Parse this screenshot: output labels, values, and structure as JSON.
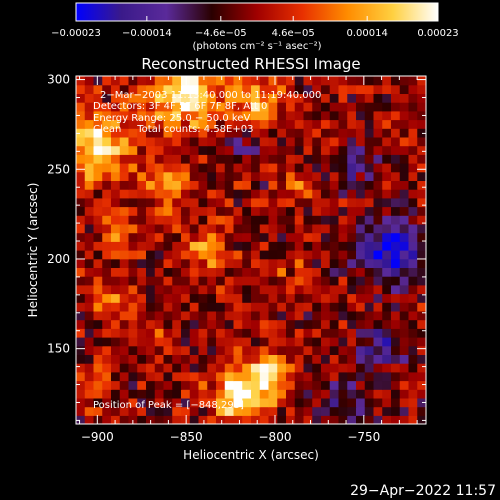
{
  "chart_data": {
    "type": "heatmap",
    "title": "Reconstructed RHESSI Image",
    "xlabel": "Heliocentric X (arcsec)",
    "ylabel": "Heliocentric Y (arcsec)",
    "xlim": [
      -912,
      -715
    ],
    "ylim": [
      108,
      302
    ],
    "x_ticks": [
      -900,
      -850,
      -800,
      -750
    ],
    "y_ticks": [
      150,
      200,
      250,
      300
    ],
    "x_tick_labels": [
      "−900",
      "−850",
      "−800",
      "−750"
    ],
    "y_tick_labels": [
      "150",
      "200",
      "250",
      "300"
    ],
    "colorbar": {
      "min": -0.00023,
      "max": 0.00023,
      "ticks": [
        -0.00023,
        -0.00014,
        -4.6e-05,
        4.6e-05,
        0.00014,
        0.00023
      ],
      "tick_labels": [
        "−0.00023",
        "−0.00014",
        "−4.6e−05",
        "4.6e−05",
        "0.00014",
        "0.00023"
      ],
      "units": "(photons cm⁻² s⁻¹ asec⁻²)",
      "colors": [
        "#0000ff",
        "#3a1a8a",
        "#5a2a9a",
        "#2a0000",
        "#a00000",
        "#e83000",
        "#ff8c00",
        "#ffd040",
        "#ffffff"
      ]
    },
    "annotations": [
      "2−Mar−2003 11:13:40.000 to 11:19:40.000",
      "Detectors: 3F 4F 5F 6F 7F 8F, Att 0",
      "Energy Range: 25.0 − 50.0 keV",
      "Clean     Total counts: 4.58E+03",
      "Position of Peak = [−848,293]"
    ],
    "grid": false,
    "grid_cells": [
      40,
      40
    ],
    "features": [
      {
        "x": -820,
        "y": 125,
        "amp": 1.0,
        "sigma": 11
      },
      {
        "x": -803,
        "y": 136,
        "amp": 0.85,
        "sigma": 8
      },
      {
        "x": -900,
        "y": 262,
        "amp": 0.9,
        "sigma": 14
      },
      {
        "x": -850,
        "y": 293,
        "amp": 1.0,
        "sigma": 14
      },
      {
        "x": -810,
        "y": 288,
        "amp": 0.7,
        "sigma": 10
      },
      {
        "x": -860,
        "y": 240,
        "amp": 0.55,
        "sigma": 9
      },
      {
        "x": -888,
        "y": 215,
        "amp": 0.5,
        "sigma": 8
      },
      {
        "x": -840,
        "y": 205,
        "amp": 0.5,
        "sigma": 9
      },
      {
        "x": -895,
        "y": 180,
        "amp": 0.4,
        "sigma": 8
      },
      {
        "x": -870,
        "y": 160,
        "amp": 0.35,
        "sigma": 7
      },
      {
        "x": -905,
        "y": 130,
        "amp": 0.3,
        "sigma": 8
      },
      {
        "x": -790,
        "y": 240,
        "amp": 0.35,
        "sigma": 7
      },
      {
        "x": -770,
        "y": 270,
        "amp": 0.3,
        "sigma": 8
      },
      {
        "x": -790,
        "y": 190,
        "amp": 0.25,
        "sigma": 7
      },
      {
        "x": -735,
        "y": 205,
        "amp": -0.9,
        "sigma": 12
      },
      {
        "x": -740,
        "y": 150,
        "amp": -0.5,
        "sigma": 10
      },
      {
        "x": -760,
        "y": 255,
        "amp": -0.45,
        "sigma": 9
      },
      {
        "x": -820,
        "y": 265,
        "amp": -0.35,
        "sigma": 8
      },
      {
        "x": -760,
        "y": 120,
        "amp": -0.45,
        "sigma": 9
      }
    ]
  },
  "footer": {
    "timestamp": "29−Apr−2022 11:57"
  }
}
